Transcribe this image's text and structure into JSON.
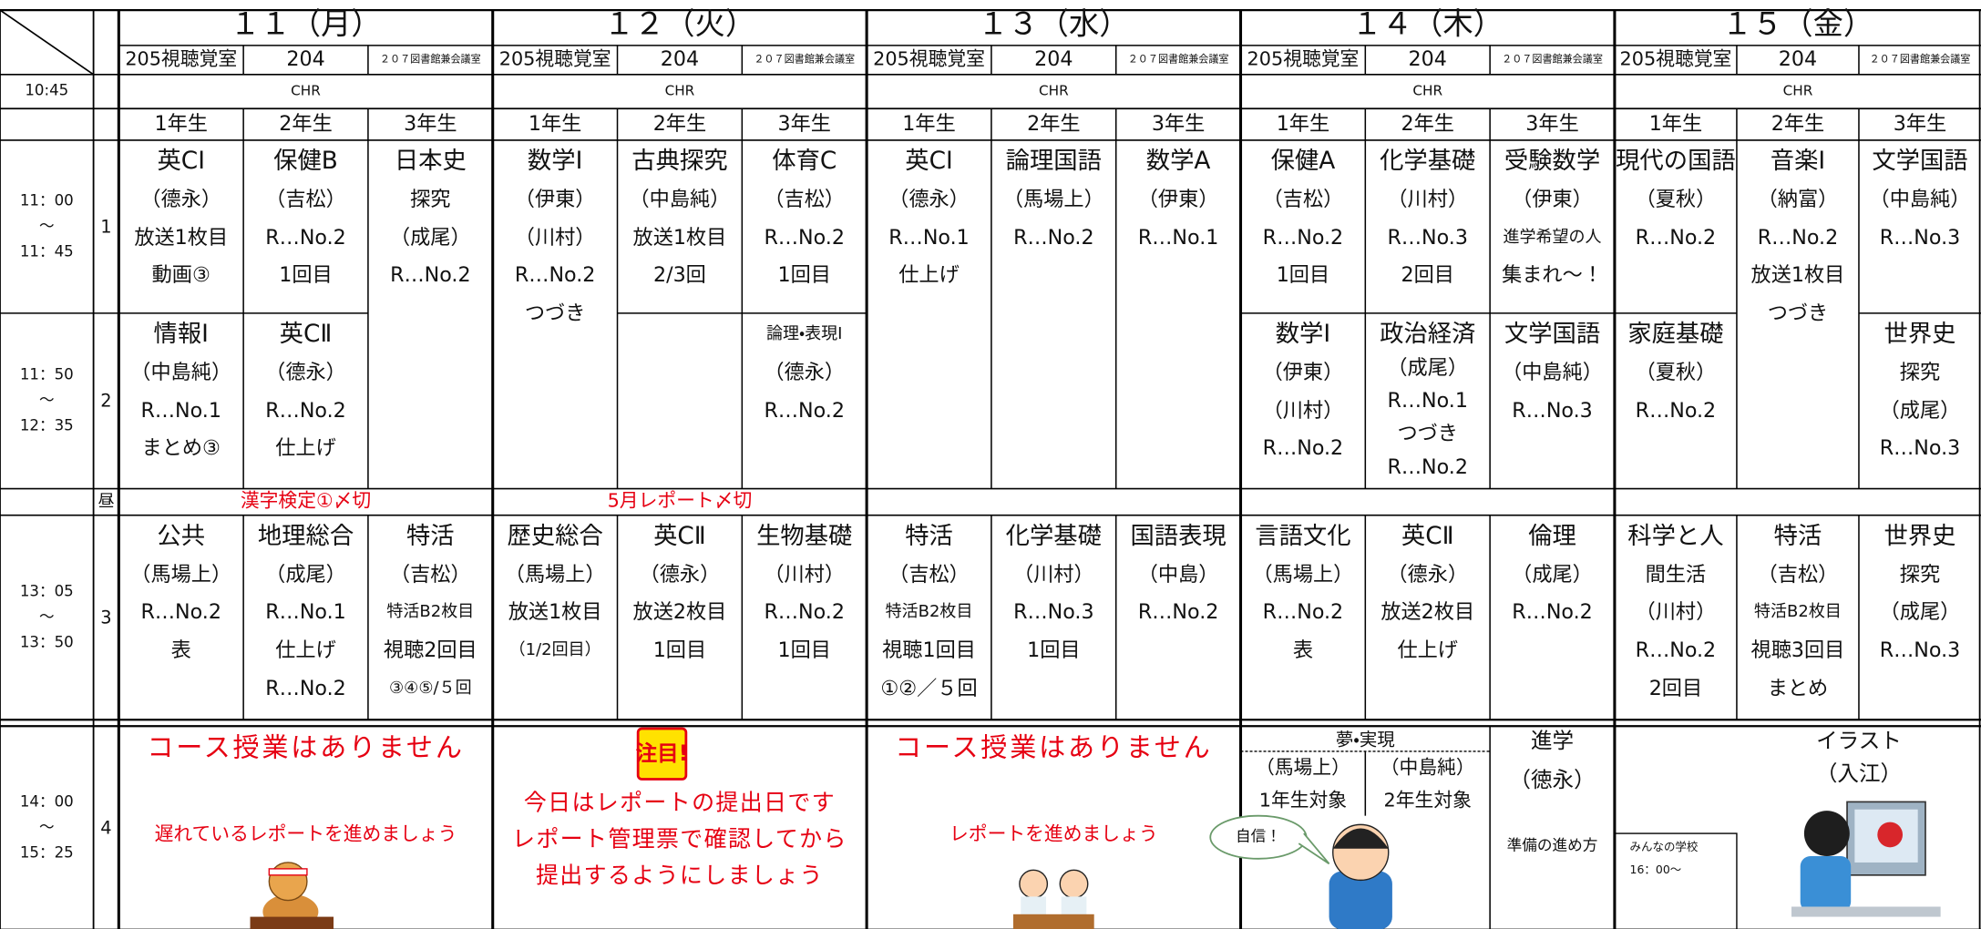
{
  "chr": {
    "time": "10:45",
    "label": "CHR"
  },
  "grades": [
    "1年生",
    "2年生",
    "3年生"
  ],
  "periods": [
    {
      "num": "1",
      "time": [
        "11：00",
        "～",
        "11：45"
      ]
    },
    {
      "num": "2",
      "time": [
        "11：50",
        "～",
        "12：35"
      ]
    },
    {
      "num": "昼"
    },
    {
      "num": "3",
      "time": [
        "13：05",
        "～",
        "13：50"
      ]
    },
    {
      "num": "4",
      "time": [
        "14：00",
        "～",
        "15：25"
      ]
    }
  ],
  "days": [
    {
      "label": "１１（月）",
      "rooms": [
        "205視聴覚室",
        "204",
        "２０７図書館兼会議室"
      ],
      "cols12": [
        [
          {
            "lines": [
              "英CⅠ",
              "（德永）",
              "放送1枚目",
              "動画③"
            ]
          },
          {
            "lines": [
              "情報Ⅰ",
              "（中島純）",
              "R…No.1",
              "まとめ③"
            ]
          }
        ],
        [
          {
            "lines": [
              "保健B",
              "（吉松）",
              "R…No.2",
              "1回目"
            ]
          },
          {
            "lines": [
              "英CⅡ",
              "（德永）",
              "R…No.2",
              "仕上げ"
            ]
          }
        ],
        [
          {
            "lines": [
              "日本史",
              "探究",
              "（成尾）",
              "R…No.2"
            ]
          }
        ]
      ],
      "lunch_note": "漢字検定①〆切",
      "p3": [
        {
          "lines": [
            "公共",
            "（馬場上）",
            "R…No.2",
            "表"
          ]
        },
        {
          "lines": [
            "地理総合",
            "（成尾）",
            "R…No.1",
            "仕上げ",
            "R…No.2"
          ]
        },
        {
          "lines": [
            "特活",
            "（吉松）",
            "特活B2枚目",
            "視聴2回目",
            "③④⑤/５回"
          ]
        }
      ],
      "p4": {
        "headline": "コース授業はありません",
        "note": "遅れているレポートを進めましょう"
      }
    },
    {
      "label": "１２（火）",
      "rooms": [
        "205視聴覚室",
        "204",
        "２０７図書館兼会議室"
      ],
      "cols12": [
        [
          {
            "lines": [
              "数学Ⅰ",
              "（伊東）",
              "（川村）",
              "R…No.2",
              "つづき"
            ]
          }
        ],
        [
          {
            "lines": [
              "古典探究",
              "（中島純）",
              "放送1枚目",
              "2/3回"
            ]
          },
          {
            "lines": []
          }
        ],
        [
          {
            "lines": [
              "体育C",
              "（吉松）",
              "R…No.2",
              "1回目"
            ]
          },
          {
            "lines": [
              "論理・表現Ⅰ",
              "（德永）",
              "R…No.2"
            ]
          }
        ]
      ],
      "lunch_note": "5月レポート〆切",
      "p3": [
        {
          "lines": [
            "歴史総合",
            "（馬場上）",
            "放送1枚目",
            "（1/2回目）"
          ]
        },
        {
          "lines": [
            "英CⅡ",
            "（德永）",
            "放送2枚目",
            "1回目"
          ]
        },
        {
          "lines": [
            "生物基礎",
            "（川村）",
            "R…No.2",
            "1回目"
          ]
        }
      ],
      "p4": {
        "badge": "注目!",
        "lines": [
          "今日はレポートの提出日です",
          "レポート管理票で確認してから",
          "提出するようにしましょう"
        ]
      }
    },
    {
      "label": "１３（水）",
      "rooms": [
        "205視聴覚室",
        "204",
        "２０７図書館兼会議室"
      ],
      "cols12": [
        [
          {
            "lines": [
              "英CⅠ",
              "（德永）",
              "R…No.1",
              "仕上げ"
            ]
          }
        ],
        [
          {
            "lines": [
              "論理国語",
              "（馬場上）",
              "R…No.2"
            ]
          }
        ],
        [
          {
            "lines": [
              "数学A",
              "（伊東）",
              "R…No.1"
            ]
          }
        ]
      ],
      "p3": [
        {
          "lines": [
            "特活",
            "（吉松）",
            "特活B2枚目",
            "視聴1回目",
            "①②／５回"
          ]
        },
        {
          "lines": [
            "化学基礎",
            "（川村）",
            "R…No.3",
            "1回目"
          ]
        },
        {
          "lines": [
            "国語表現",
            "（中島）",
            "R…No.2"
          ]
        }
      ],
      "p4": {
        "headline": "コース授業はありません",
        "note": "レポートを進めましょう"
      }
    },
    {
      "label": "１４（木）",
      "rooms": [
        "205視聴覚室",
        "204",
        "２０７図書館兼会議室"
      ],
      "cols12": [
        [
          {
            "lines": [
              "保健A",
              "（吉松）",
              "R…No.2",
              "1回目"
            ]
          },
          {
            "lines": [
              "数学Ⅰ",
              "（伊東）",
              "（川村）",
              "R…No.2"
            ]
          }
        ],
        [
          {
            "lines": [
              "化学基礎",
              "（川村）",
              "R…No.3",
              "2回目"
            ]
          },
          {
            "lines": [
              "政治経済",
              "（成尾）",
              "R…No.1",
              "つづき",
              "R…No.2"
            ]
          }
        ],
        [
          {
            "lines": [
              "受験数学",
              "（伊東）",
              "進学希望の人",
              "集まれ～！"
            ]
          },
          {
            "lines": [
              "文学国語",
              "（中島純）",
              "R…No.3"
            ]
          }
        ]
      ],
      "p3": [
        {
          "lines": [
            "言語文化",
            "（馬場上）",
            "R…No.2",
            "表"
          ]
        },
        {
          "lines": [
            "英CⅡ",
            "（德永）",
            "放送2枚目",
            "仕上げ"
          ]
        },
        {
          "lines": [
            "倫理",
            "（成尾）",
            "R…No.2"
          ]
        }
      ],
      "p4": {
        "heading": "夢・実現",
        "groups": [
          {
            "teacher": "（馬場上）",
            "target": "1年生対象"
          },
          {
            "teacher": "（中島純）",
            "target": "2年生対象"
          }
        ],
        "bubble": "自信！",
        "side": [
          "進学",
          "（徳永）",
          "準備の進め方"
        ]
      }
    },
    {
      "label": "１５（金）",
      "rooms": [
        "205視聴覚室",
        "204",
        "２０７図書館兼会議室"
      ],
      "cols12": [
        [
          {
            "lines": [
              "現代の国語",
              "（夏秋）",
              "R…No.2"
            ]
          },
          {
            "lines": [
              "家庭基礎",
              "（夏秋）",
              "R…No.2"
            ]
          }
        ],
        [
          {
            "lines": [
              "音楽Ⅰ",
              "（納富）",
              "R…No.2",
              "放送1枚目",
              "つづき"
            ]
          }
        ],
        [
          {
            "lines": [
              "文学国語",
              "（中島純）",
              "R…No.3"
            ]
          },
          {
            "lines": [
              "世界史",
              "探究",
              "（成尾）",
              "R…No.3"
            ]
          }
        ]
      ],
      "p3": [
        {
          "lines": [
            "科学と人",
            "間生活",
            "（川村）",
            "R…No.2",
            "2回目"
          ]
        },
        {
          "lines": [
            "特活",
            "（吉松）",
            "特活B2枚目",
            "視聴3回目",
            "まとめ"
          ]
        },
        {
          "lines": [
            "世界史",
            "探究",
            "（成尾）",
            "R…No.3"
          ]
        }
      ],
      "p4": {
        "small": [
          "みんなの学校",
          "16：00～"
        ],
        "art": [
          "イラスト",
          "（入江）"
        ]
      }
    }
  ]
}
